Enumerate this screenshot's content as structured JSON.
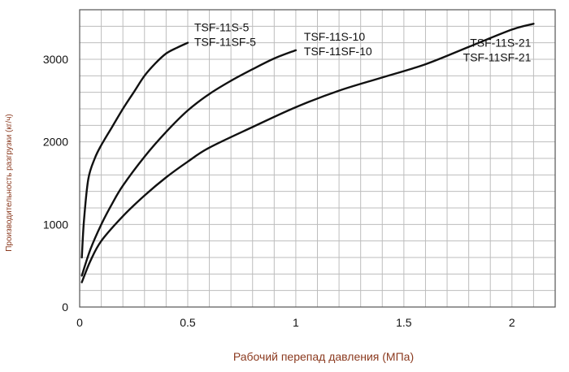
{
  "chart_data": {
    "type": "line",
    "title": "",
    "xlabel": "Рабочий перепад давления (МПа)",
    "ylabel": "Производительность разгрузки (кг/ч)",
    "xlim": [
      0,
      2.2
    ],
    "ylim": [
      0,
      3600
    ],
    "xticks": [
      {
        "value": 0,
        "label": "0"
      },
      {
        "value": 0.5,
        "label": "0.5"
      },
      {
        "value": 1,
        "label": "1"
      },
      {
        "value": 1.5,
        "label": "1.5"
      },
      {
        "value": 2,
        "label": "2"
      }
    ],
    "yticks": [
      {
        "value": 0,
        "label": "0"
      },
      {
        "value": 1000,
        "label": "1000"
      },
      {
        "value": 2000,
        "label": "2000"
      },
      {
        "value": 3000,
        "label": "3000"
      }
    ],
    "grid": true,
    "colors": {
      "line": "#111111",
      "grid": "#bdbdbd",
      "axis_title": "#8b3a1f",
      "tick_label": "#111111"
    },
    "series": [
      {
        "label_lines": [
          "TSF-11S-5",
          "TSF-11SF-5"
        ],
        "x": [
          0.01,
          0.02,
          0.04,
          0.07,
          0.1,
          0.15,
          0.2,
          0.25,
          0.3,
          0.35,
          0.4,
          0.45,
          0.5
        ],
        "y": [
          600,
          1050,
          1550,
          1800,
          1960,
          2180,
          2400,
          2600,
          2800,
          2950,
          3070,
          3140,
          3200
        ]
      },
      {
        "label_lines": [
          "TSF-11S-10",
          "TSF-11SF-10"
        ],
        "x": [
          0.01,
          0.05,
          0.1,
          0.15,
          0.2,
          0.3,
          0.4,
          0.5,
          0.6,
          0.7,
          0.8,
          0.9,
          1.0
        ],
        "y": [
          380,
          700,
          1000,
          1250,
          1470,
          1820,
          2120,
          2380,
          2580,
          2740,
          2880,
          3010,
          3110
        ]
      },
      {
        "label_lines": [
          "TSF-11S-21",
          "TSF-11SF-21"
        ],
        "x": [
          0.01,
          0.05,
          0.1,
          0.2,
          0.3,
          0.4,
          0.5,
          0.6,
          0.8,
          1.0,
          1.2,
          1.4,
          1.6,
          1.8,
          2.0,
          2.1
        ],
        "y": [
          300,
          560,
          800,
          1100,
          1350,
          1570,
          1760,
          1930,
          2180,
          2420,
          2620,
          2780,
          2940,
          3150,
          3360,
          3430
        ]
      }
    ]
  }
}
